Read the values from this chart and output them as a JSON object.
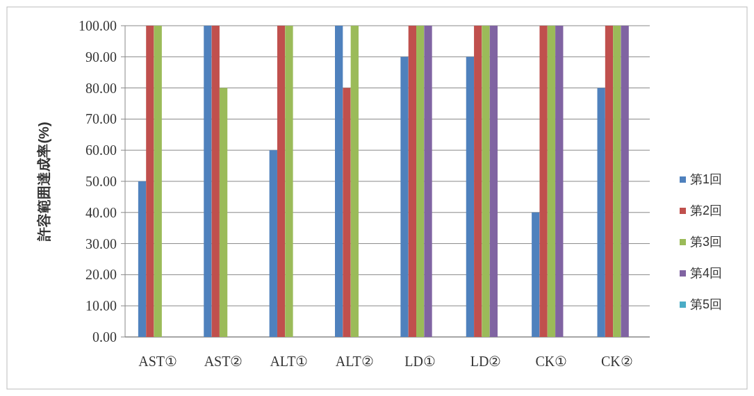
{
  "chart_data": {
    "type": "bar",
    "ylabel": "許容範囲達成率(%)",
    "categories": [
      "AST①",
      "AST②",
      "ALT①",
      "ALT②",
      "LD①",
      "LD②",
      "CK①",
      "CK②"
    ],
    "series": [
      {
        "name": "第1回",
        "color": "#4f81bd",
        "values": [
          50,
          100,
          60,
          100,
          90,
          90,
          40,
          80
        ]
      },
      {
        "name": "第2回",
        "color": "#c0504d",
        "values": [
          100,
          100,
          100,
          80,
          100,
          100,
          100,
          100
        ]
      },
      {
        "name": "第3回",
        "color": "#9bbb59",
        "values": [
          100,
          80,
          100,
          100,
          100,
          100,
          100,
          100
        ]
      },
      {
        "name": "第4回",
        "color": "#8064a2",
        "values": [
          null,
          null,
          null,
          null,
          100,
          100,
          100,
          100
        ]
      },
      {
        "name": "第5回",
        "color": "#4bacc6",
        "values": [
          null,
          null,
          null,
          null,
          null,
          null,
          null,
          null
        ]
      }
    ],
    "ylim": [
      0,
      100
    ],
    "yticks": [
      {
        "value": 0,
        "label": "0.00"
      },
      {
        "value": 10,
        "label": "10.00"
      },
      {
        "value": 20,
        "label": "20.00"
      },
      {
        "value": 30,
        "label": "30.00"
      },
      {
        "value": 40,
        "label": "40.00"
      },
      {
        "value": 50,
        "label": "50.00"
      },
      {
        "value": 60,
        "label": "60.00"
      },
      {
        "value": 70,
        "label": "70.00"
      },
      {
        "value": 80,
        "label": "80.00"
      },
      {
        "value": 90,
        "label": "90.00"
      },
      {
        "value": 100,
        "label": "100.00"
      }
    ],
    "grid": "y",
    "legend": "right"
  }
}
